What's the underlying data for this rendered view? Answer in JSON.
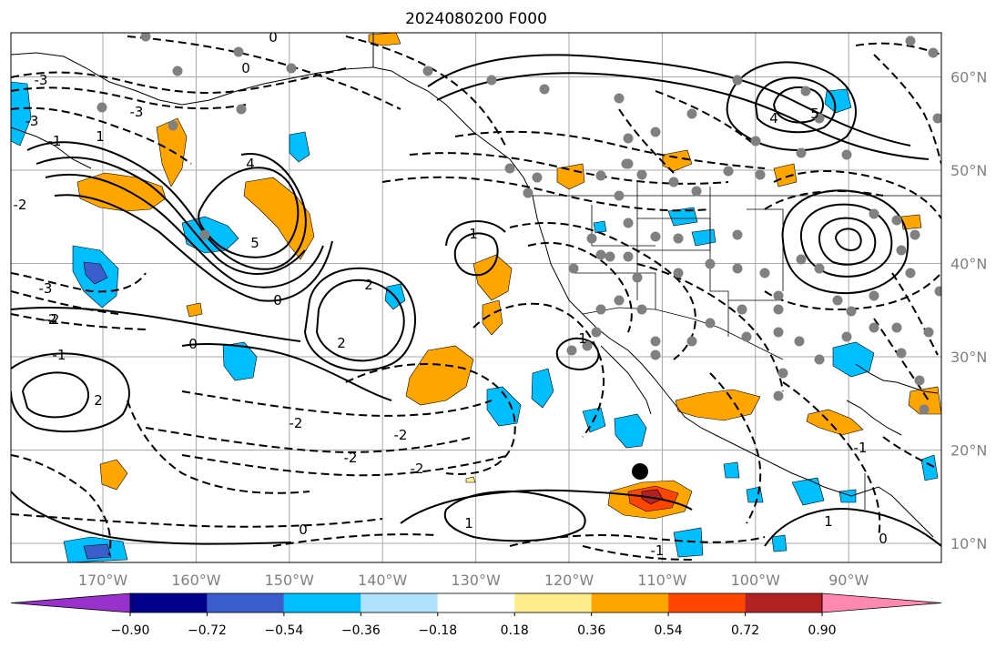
{
  "title": "2024080200 F000",
  "map": {
    "lon_labels": [
      "170°W",
      "160°W",
      "150°W",
      "140°W",
      "130°W",
      "120°W",
      "110°W",
      "100°W",
      "90°W"
    ],
    "lat_labels": [
      "60°N",
      "50°N",
      "40°N",
      "30°N",
      "20°N",
      "10°N"
    ],
    "lon_range": [
      -180,
      -80
    ],
    "lat_range": [
      7,
      65
    ],
    "grid": true,
    "storm_marker": {
      "lon": -112.5,
      "lat": 17.6,
      "symbol": "filled-circle"
    }
  },
  "contour_labels": [
    {
      "text": "-3"
    },
    {
      "text": "-3"
    },
    {
      "text": "-2"
    },
    {
      "text": "-3"
    },
    {
      "text": "-2"
    },
    {
      "text": "-1"
    },
    {
      "text": "0"
    },
    {
      "text": "0"
    },
    {
      "text": "0"
    },
    {
      "text": "0"
    },
    {
      "text": "0"
    },
    {
      "text": "1"
    },
    {
      "text": "1"
    },
    {
      "text": "1"
    },
    {
      "text": "1"
    },
    {
      "text": "1"
    },
    {
      "text": "-1"
    },
    {
      "text": "-1"
    },
    {
      "text": "-1"
    },
    {
      "text": "2"
    },
    {
      "text": "2"
    },
    {
      "text": "-2"
    },
    {
      "text": "-2"
    },
    {
      "text": "-2"
    },
    {
      "text": "2"
    },
    {
      "text": "-2"
    },
    {
      "text": "4"
    },
    {
      "text": "5"
    },
    {
      "text": "4"
    },
    {
      "text": "5"
    },
    {
      "text": "-3"
    },
    {
      "text": "-2"
    },
    {
      "text": "0"
    }
  ],
  "colorbar": {
    "levels": [
      "−0.90",
      "−0.72",
      "−0.54",
      "−0.36",
      "−0.18",
      "0.18",
      "0.36",
      "0.54",
      "0.72",
      "0.90"
    ],
    "colors": [
      "#9932cc",
      "#00008b",
      "#3a5fcd",
      "#00bfff",
      "#b0e2ff",
      "#ffffff",
      "#ffec8b",
      "#ffa500",
      "#ff4500",
      "#b22222",
      "#ff88b0"
    ]
  },
  "colors": {
    "positive_fill": "#ffa500",
    "strong_positive": "#ff4500",
    "negative_fill": "#00bfff",
    "station_dot": "#808080",
    "grid": "#a8a8a8"
  },
  "stations_count_note": ""
}
